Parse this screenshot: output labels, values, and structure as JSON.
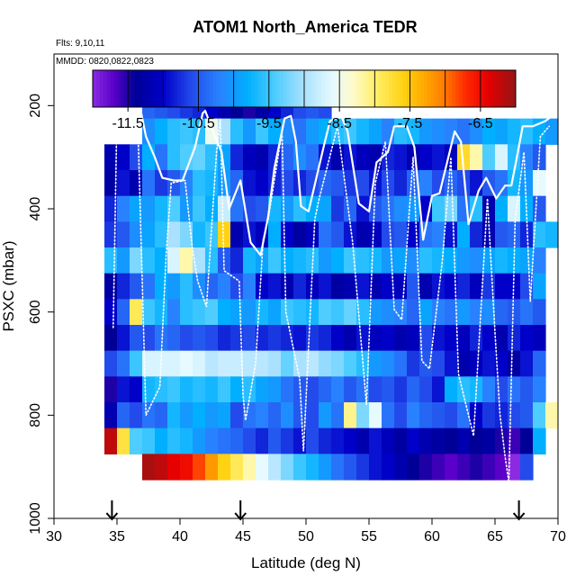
{
  "chart_data": {
    "type": "heatmap",
    "title": "ATOM1 North_America TEDR",
    "subtitle_lines": [
      "Flts: 9,10,11",
      "MMDD: 0820,0822,0823"
    ],
    "xlabel": "Latitude (deg N)",
    "ylabel": "PSXC (mbar)",
    "xlim": [
      30,
      70
    ],
    "ylim": [
      1000,
      100
    ],
    "x_ticks": [
      30,
      35,
      40,
      45,
      50,
      55,
      60,
      65,
      70
    ],
    "y_ticks": [
      200,
      400,
      600,
      800,
      1000
    ],
    "colorbar": {
      "range": [
        -12,
        -6
      ],
      "tick_values": [
        -11.5,
        -10.5,
        -9.5,
        -8.5,
        -7.5,
        -6.5
      ],
      "tick_labels": [
        "-11.5",
        "-10.5",
        "-9.5",
        "-8.5",
        "-7.5",
        "-6.5"
      ]
    },
    "grid": {
      "lat_start": 34,
      "lat_step": 1,
      "n_cols": 36,
      "p_start": 175,
      "p_step": 50,
      "n_rows": 15,
      "values": [
        [
          null,
          null,
          null,
          -10.4,
          -10.5,
          -10.6,
          -10.7,
          -10.8,
          -11.0,
          -11.2,
          -11.4,
          -11.5,
          -11.3,
          -11.0,
          -10.8,
          -10.6,
          -10.5,
          -10.6,
          null,
          null,
          null,
          null,
          null,
          null,
          null,
          null,
          null,
          null,
          null,
          null,
          null,
          null,
          null,
          null,
          null,
          null
        ],
        [
          null,
          null,
          null,
          -10.1,
          -9.8,
          -9.6,
          -9.5,
          -9.6,
          -8.5,
          -9.0,
          -9.6,
          -10.0,
          -9.5,
          -9.8,
          -10.1,
          -10.3,
          -10.0,
          -9.8,
          -9.6,
          -9.5,
          -9.7,
          -9.9,
          -10.2,
          -9.6,
          -9.7,
          -10.0,
          -10.1,
          -10.2,
          -10.3,
          -10.1,
          -9.8,
          -9.9,
          -9.7,
          -9.6,
          -9.8,
          -10.0
        ],
        [
          -11.2,
          -11.0,
          -10.6,
          -9.8,
          -10.3,
          -9.6,
          -9.4,
          -9.3,
          -9.6,
          -9.9,
          -10.8,
          -11.1,
          -11.2,
          -10.8,
          -10.4,
          -10.1,
          -10.3,
          -10.9,
          -11.2,
          -10.9,
          -11.1,
          -11.2,
          -10.8,
          -10.9,
          -11.2,
          -11.0,
          -10.9,
          -11.1,
          -7.7,
          -8.2,
          -9.4,
          -8.7,
          -9.6,
          -10.2,
          -10.5,
          null
        ],
        [
          -11.3,
          -10.9,
          -11.2,
          -10.3,
          -10.7,
          -10.5,
          -10.2,
          -9.6,
          -9.7,
          -10.0,
          -10.4,
          -10.9,
          -11.0,
          -10.8,
          -10.6,
          -10.8,
          -10.6,
          -10.4,
          -10.5,
          -10.7,
          -10.6,
          -10.9,
          -10.6,
          -10.8,
          -10.4,
          -10.2,
          -10.6,
          -10.4,
          -10.6,
          -10.9,
          -10.5,
          -10.3,
          -9.7,
          -10.0,
          -8.6,
          null
        ],
        [
          -10.8,
          -10.2,
          -9.9,
          -10.0,
          -9.7,
          -9.4,
          -10.0,
          -9.5,
          -9.8,
          -8.8,
          -10.3,
          -10.6,
          -10.5,
          -9.7,
          -10.0,
          -9.6,
          -9.8,
          -9.9,
          -10.7,
          -10.4,
          -10.9,
          -10.5,
          -10.3,
          -10.1,
          -10.0,
          -11.0,
          -9.5,
          -9.2,
          -10.3,
          -9.6,
          -11.2,
          -9.8,
          -8.7,
          -9.8,
          -10.5,
          null
        ],
        [
          -10.7,
          -10.5,
          -10.1,
          -9.9,
          -9.6,
          -9.0,
          -9.2,
          -9.7,
          -9.5,
          -7.6,
          -11.2,
          -10.9,
          -11.1,
          -9.8,
          -11.0,
          -11.3,
          -11.1,
          -10.3,
          -10.5,
          -10.9,
          -11.2,
          -11.1,
          -10.6,
          -10.5,
          -11.0,
          -10.3,
          -10.2,
          -10.9,
          -9.8,
          -10.8,
          -11.2,
          -10.5,
          -10.4,
          -10.8,
          -9.6,
          -9.7
        ],
        [
          -9.6,
          -10.0,
          -9.2,
          -9.6,
          -9.8,
          -8.7,
          -8.2,
          -9.0,
          -9.6,
          -10.5,
          -10.8,
          -9.7,
          -9.9,
          -9.5,
          -9.8,
          -9.7,
          -9.6,
          -10.0,
          -9.8,
          -9.5,
          -9.6,
          -9.7,
          -10.0,
          -9.9,
          -10.1,
          -9.6,
          -9.7,
          -9.8,
          -10.0,
          -10.1,
          -9.9,
          -9.7,
          -9.8,
          -9.9,
          -10.2,
          null
        ],
        [
          -11.3,
          -10.8,
          -10.5,
          -10.3,
          -9.8,
          -10.0,
          -9.6,
          -10.1,
          -10.4,
          -10.2,
          -10.6,
          -10.2,
          -11.0,
          -10.9,
          -11.2,
          -10.8,
          -11.1,
          -10.9,
          -11.3,
          -11.2,
          -10.9,
          -11.2,
          -11.0,
          -11.1,
          -10.5,
          -11.2,
          -10.9,
          -11.0,
          -10.8,
          -11.1,
          -10.7,
          -11.0,
          -11.0,
          -10.6,
          -9.9,
          null
        ],
        [
          -11.0,
          -10.4,
          -7.9,
          -9.5,
          -9.7,
          -10.2,
          -9.6,
          -9.5,
          -9.4,
          -9.8,
          -9.9,
          -10.0,
          -9.7,
          -9.9,
          -9.5,
          -9.6,
          -9.7,
          -9.4,
          -9.5,
          -9.3,
          -9.6,
          -10.0,
          -10.1,
          -10.2,
          -10.4,
          -9.9,
          -10.2,
          -10.3,
          -10.0,
          -10.2,
          -10.1,
          -10.4,
          -10.5,
          -10.3,
          -10.5,
          null
        ],
        [
          -11.4,
          -10.9,
          -10.5,
          -10.6,
          -10.3,
          -10.4,
          -10.6,
          -10.5,
          -10.6,
          -10.8,
          -10.7,
          -10.6,
          -10.8,
          -10.7,
          -10.8,
          -10.9,
          -10.7,
          -10.8,
          -11.0,
          -11.2,
          -10.9,
          -11.1,
          -11.0,
          -11.2,
          -11.1,
          -10.6,
          -10.9,
          -11.0,
          -11.1,
          -10.8,
          -11.0,
          -11.2,
          -10.8,
          -11.0,
          -11.1,
          null
        ],
        [
          -10.6,
          -10.3,
          -9.5,
          -8.7,
          -8.7,
          -8.7,
          -8.6,
          -8.7,
          -8.9,
          -8.8,
          -8.8,
          -8.9,
          -8.9,
          -9.0,
          -9.3,
          -9.0,
          -8.9,
          -9.1,
          -9.2,
          -9.4,
          -9.6,
          -10.0,
          -10.1,
          -10.3,
          -10.7,
          -10.5,
          -10.6,
          -10.9,
          -11.2,
          -11.1,
          -10.9,
          -11.0,
          -11.3,
          -10.9,
          -10.4,
          null
        ],
        [
          -11.5,
          -10.9,
          -11.0,
          -9.7,
          -9.6,
          -9.5,
          -9.7,
          -9.6,
          -9.7,
          -9.5,
          -9.8,
          -9.6,
          -9.9,
          -10.0,
          -10.3,
          -10.5,
          -10.6,
          -10.4,
          -10.2,
          -10.5,
          -10.3,
          -10.6,
          -10.5,
          -10.7,
          -10.4,
          -10.6,
          -10.9,
          -9.8,
          -9.6,
          -9.7,
          -10.2,
          -10.6,
          -10.3,
          -10.5,
          -10.2,
          null
        ],
        [
          -11.2,
          -10.4,
          -10.6,
          -10.3,
          -10.4,
          -9.7,
          -10.0,
          -9.8,
          -10.0,
          -9.9,
          -10.6,
          -10.3,
          -10.2,
          -10.4,
          -10.1,
          -10.5,
          -10.6,
          -10.0,
          -10.3,
          -8.1,
          -9.2,
          -8.6,
          -10.3,
          -10.6,
          -10.2,
          -10.4,
          -10.5,
          -10.6,
          -10.3,
          -11.0,
          -10.7,
          -10.8,
          -10.6,
          -10.5,
          -9.4,
          -8.2
        ],
        [
          -6.2,
          -7.8,
          -9.4,
          -9.5,
          -9.8,
          -9.6,
          -9.7,
          -10.0,
          -10.2,
          -10.3,
          -10.4,
          -10.6,
          -10.8,
          -10.5,
          -10.7,
          -10.9,
          -10.6,
          -10.8,
          -10.9,
          -11.0,
          -11.2,
          -10.9,
          -11.1,
          -11.3,
          -11.0,
          -11.2,
          -11.3,
          -11.4,
          -11.2,
          -11.4,
          -11.3,
          -11.5,
          -11.6,
          -11.4,
          -9.8,
          null
        ],
        [
          null,
          null,
          null,
          -6.1,
          -6.2,
          -6.4,
          -6.5,
          -6.8,
          -7.2,
          -7.6,
          -7.9,
          -8.2,
          -8.6,
          -8.9,
          -9.2,
          -9.5,
          -9.7,
          -10.0,
          -10.3,
          -10.5,
          -10.7,
          -10.9,
          -11.0,
          -11.2,
          -11.4,
          -11.5,
          -11.6,
          -11.7,
          -11.6,
          -11.5,
          -11.6,
          -11.7,
          -12.0,
          -10.6,
          null,
          null
        ]
      ]
    },
    "flight_track_solid": [
      [
        34.9,
        200
      ],
      [
        35.2,
        180
      ],
      [
        36.5,
        180
      ],
      [
        36.8,
        200
      ],
      [
        37.3,
        260
      ],
      [
        38.0,
        300
      ],
      [
        38.6,
        340
      ],
      [
        39.5,
        345
      ],
      [
        40.2,
        345
      ],
      [
        41.2,
        280
      ],
      [
        41.8,
        215
      ],
      [
        42.0,
        210
      ],
      [
        42.7,
        255
      ],
      [
        43.3,
        290
      ],
      [
        43.9,
        400
      ],
      [
        44.8,
        345
      ],
      [
        45.6,
        465
      ],
      [
        46.4,
        490
      ],
      [
        47.0,
        415
      ],
      [
        47.5,
        320
      ],
      [
        48.3,
        225
      ],
      [
        48.8,
        220
      ],
      [
        49.2,
        270
      ],
      [
        49.6,
        395
      ],
      [
        50.2,
        405
      ],
      [
        51.4,
        280
      ],
      [
        51.9,
        230
      ],
      [
        52.8,
        220
      ],
      [
        53.3,
        250
      ],
      [
        54.2,
        390
      ],
      [
        55.0,
        405
      ],
      [
        55.6,
        310
      ],
      [
        56.5,
        290
      ],
      [
        57.0,
        240
      ],
      [
        58.0,
        240
      ],
      [
        58.6,
        280
      ],
      [
        59.3,
        460
      ],
      [
        60.0,
        375
      ],
      [
        60.6,
        370
      ],
      [
        61.4,
        290
      ],
      [
        61.8,
        250
      ],
      [
        62.3,
        270
      ],
      [
        62.9,
        430
      ],
      [
        63.7,
        365
      ],
      [
        64.3,
        340
      ],
      [
        65.1,
        380
      ],
      [
        65.8,
        355
      ],
      [
        66.3,
        355
      ],
      [
        66.7,
        305
      ],
      [
        67.2,
        240
      ],
      [
        68.0,
        240
      ],
      [
        69.0,
        230
      ],
      [
        69.8,
        215
      ],
      [
        70.0,
        215
      ]
    ],
    "flight_track_dotted": [
      [
        34.7,
        630
      ],
      [
        35.0,
        210
      ],
      [
        36.6,
        190
      ],
      [
        37.3,
        800
      ],
      [
        38.4,
        745
      ],
      [
        38.9,
        490
      ],
      [
        39.3,
        350
      ],
      [
        40.4,
        345
      ],
      [
        41.0,
        480
      ],
      [
        41.4,
        540
      ],
      [
        42.1,
        590
      ],
      [
        42.9,
        290
      ],
      [
        43.2,
        225
      ],
      [
        43.5,
        520
      ],
      [
        44.7,
        540
      ],
      [
        45.0,
        760
      ],
      [
        45.2,
        810
      ],
      [
        46.0,
        700
      ],
      [
        46.6,
        460
      ],
      [
        47.0,
        420
      ],
      [
        48.1,
        250
      ],
      [
        48.4,
        600
      ],
      [
        49.5,
        730
      ],
      [
        49.8,
        870
      ],
      [
        50.7,
        420
      ],
      [
        51.0,
        385
      ],
      [
        52.5,
        240
      ],
      [
        53.7,
        465
      ],
      [
        54.8,
        780
      ],
      [
        55.5,
        350
      ],
      [
        56.3,
        270
      ],
      [
        57.0,
        595
      ],
      [
        57.6,
        615
      ],
      [
        58.5,
        300
      ],
      [
        59.2,
        695
      ],
      [
        59.8,
        710
      ],
      [
        60.8,
        505
      ],
      [
        61.5,
        300
      ],
      [
        62.1,
        720
      ],
      [
        63.3,
        840
      ],
      [
        64.4,
        380
      ],
      [
        65.0,
        640
      ],
      [
        65.4,
        800
      ],
      [
        65.8,
        880
      ],
      [
        66.1,
        930
      ],
      [
        66.6,
        420
      ],
      [
        67.3,
        290
      ],
      [
        67.8,
        580
      ],
      [
        68.6,
        260
      ],
      [
        69.3,
        240
      ]
    ],
    "arrows_lat": [
      34.6,
      44.8,
      66.9
    ]
  }
}
